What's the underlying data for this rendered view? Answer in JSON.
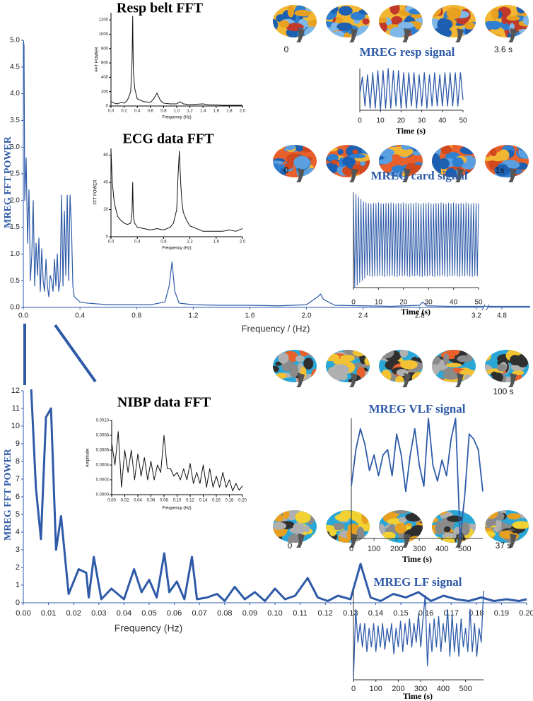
{
  "chart_data": [
    {
      "type": "line",
      "xlabel": "Frequency / (Hz)",
      "ylabel": "MREG FFT POWER",
      "color": "#2e5aa8",
      "xlim": [
        0,
        5.0
      ],
      "axis_break": [
        3.25,
        4.7
      ],
      "ylim": [
        0,
        5.0
      ],
      "xticks": [
        {
          "value": 0,
          "label": "0.0"
        },
        0.4,
        0.8,
        1.2,
        1.6,
        {
          "value": 2,
          "label": "2.0"
        },
        2.4,
        2.8,
        3.2,
        4.8
      ],
      "yticks": [
        {
          "value": 0,
          "label": "0.0"
        },
        0.5,
        {
          "value": 1,
          "label": "1.0"
        },
        1.5,
        {
          "value": 2,
          "label": "2.0"
        },
        2.5,
        {
          "value": 3,
          "label": "3.0"
        },
        3.5,
        {
          "value": 4,
          "label": "4.0"
        },
        4.5,
        {
          "value": 5,
          "label": "5.0"
        }
      ],
      "x": [
        0,
        0.005,
        0.01,
        0.02,
        0.03,
        0.04,
        0.05,
        0.06,
        0.07,
        0.08,
        0.09,
        0.1,
        0.11,
        0.12,
        0.13,
        0.14,
        0.15,
        0.16,
        0.17,
        0.18,
        0.19,
        0.2,
        0.21,
        0.22,
        0.23,
        0.24,
        0.25,
        0.26,
        0.27,
        0.28,
        0.29,
        0.3,
        0.31,
        0.32,
        0.33,
        0.34,
        0.35,
        0.36,
        0.38,
        0.4,
        0.45,
        0.5,
        0.55,
        0.6,
        0.7,
        0.8,
        0.9,
        1.0,
        1.03,
        1.05,
        1.07,
        1.1,
        1.2,
        1.4,
        1.6,
        1.8,
        2.0,
        2.08,
        2.1,
        2.12,
        2.2,
        2.4,
        2.6,
        2.8,
        2.82,
        2.85,
        3.0,
        3.2,
        4.7,
        4.8,
        5.0
      ],
      "values": [
        5.0,
        4.9,
        2.0,
        2.8,
        1.2,
        2.2,
        0.5,
        1.0,
        2.0,
        0.4,
        1.2,
        0.6,
        1.3,
        0.3,
        1.1,
        0.5,
        0.3,
        0.9,
        0.4,
        0.2,
        0.6,
        0.5,
        0.3,
        0.9,
        0.4,
        1.0,
        0.3,
        0.5,
        2.1,
        0.4,
        1.8,
        0.6,
        2.1,
        0.5,
        2.1,
        1.5,
        0.4,
        0.2,
        0.15,
        0.1,
        0.08,
        0.07,
        0.06,
        0.05,
        0.05,
        0.05,
        0.05,
        0.1,
        0.4,
        0.85,
        0.3,
        0.08,
        0.05,
        0.04,
        0.04,
        0.03,
        0.05,
        0.2,
        0.25,
        0.15,
        0.04,
        0.03,
        0.02,
        0.04,
        0.1,
        0.03,
        0.02,
        0.02,
        0.02,
        0.02,
        0.02
      ]
    },
    {
      "type": "line",
      "title": "Resp belt FFT",
      "xlabel": "Frequency (Hz)",
      "ylabel": "FFT POWER",
      "color": "#111111",
      "xlim": [
        0,
        2.0
      ],
      "ylim": [
        0,
        1300
      ],
      "xticks": [
        {
          "value": 0,
          "label": "0.0"
        },
        0.2,
        0.4,
        0.6,
        0.8,
        {
          "value": 1,
          "label": "1.0"
        },
        1.2,
        1.4,
        1.6,
        1.8,
        {
          "value": 2,
          "label": "2.0"
        }
      ],
      "yticks": [
        0,
        200,
        400,
        600,
        800,
        1000,
        1200
      ],
      "x": [
        0,
        0.05,
        0.1,
        0.15,
        0.2,
        0.25,
        0.3,
        0.32,
        0.33,
        0.34,
        0.36,
        0.4,
        0.5,
        0.6,
        0.65,
        0.7,
        0.75,
        0.8,
        0.9,
        1.0,
        1.05,
        1.1,
        1.2,
        1.3,
        1.4,
        1.5,
        1.6,
        1.7,
        1.8,
        1.9,
        2.0
      ],
      "values": [
        60,
        40,
        30,
        50,
        40,
        80,
        200,
        600,
        1250,
        500,
        250,
        100,
        60,
        50,
        100,
        180,
        80,
        40,
        30,
        30,
        60,
        30,
        20,
        25,
        30,
        15,
        15,
        10,
        10,
        10,
        10
      ]
    },
    {
      "type": "line",
      "title": "ECG data FFT",
      "xlabel": "Frequency (Hz)",
      "ylabel": "FFT POWER",
      "color": "#111111",
      "xlim": [
        0,
        2.0
      ],
      "ylim": [
        0,
        65
      ],
      "xticks": [
        {
          "value": 0,
          "label": "0.0"
        },
        0.4,
        0.8,
        1.2,
        1.6,
        {
          "value": 2,
          "label": "2.0"
        }
      ],
      "yticks": [
        0,
        20,
        40,
        60
      ],
      "x": [
        0,
        0.02,
        0.05,
        0.1,
        0.15,
        0.2,
        0.25,
        0.3,
        0.32,
        0.33,
        0.34,
        0.36,
        0.4,
        0.5,
        0.6,
        0.7,
        0.8,
        0.9,
        0.95,
        1.0,
        1.02,
        1.04,
        1.06,
        1.08,
        1.1,
        1.15,
        1.2,
        1.3,
        1.4,
        1.5,
        1.6,
        1.7,
        1.8,
        1.9,
        2.0
      ],
      "values": [
        64,
        40,
        25,
        15,
        12,
        10,
        9,
        10,
        18,
        40,
        15,
        10,
        7,
        6,
        5,
        6,
        5,
        7,
        10,
        20,
        45,
        63,
        40,
        25,
        18,
        12,
        8,
        6,
        4,
        4,
        4,
        4,
        5,
        4,
        6
      ]
    },
    {
      "type": "line",
      "title": "MREG resp signal",
      "xlabel": "Time (s)",
      "color": "#2e5aa8",
      "frame_labels": [
        "0",
        "3.6 s"
      ],
      "xlim": [
        0,
        50
      ],
      "xticks": [
        0,
        10,
        20,
        30,
        40,
        50
      ],
      "x": [
        0,
        1.25,
        2.5,
        3.75,
        5,
        6.25,
        7.5,
        8.75,
        10,
        11.25,
        12.5,
        13.75,
        15,
        16.25,
        17.5,
        18.75,
        20,
        21.25,
        22.5,
        23.75,
        25,
        26.25,
        27.5,
        28.75,
        30,
        31.25,
        32.5,
        33.75,
        35,
        36.25,
        37.5,
        38.75,
        40,
        41.25,
        42.5,
        43.75,
        45,
        46.25,
        47.5,
        48.75,
        50
      ],
      "values": [
        -0.2,
        0.6,
        -0.8,
        0.7,
        -0.9,
        0.8,
        -0.9,
        0.9,
        -1,
        0.9,
        -0.9,
        1,
        -0.9,
        0.9,
        -0.8,
        0.9,
        -0.9,
        0.8,
        -0.9,
        0.8,
        -0.8,
        0.8,
        -0.9,
        0.7,
        -0.8,
        0.8,
        -0.9,
        0.7,
        -0.8,
        0.8,
        -0.8,
        0.7,
        -0.8,
        0.8,
        -0.8,
        0.8,
        -0.8,
        0.8,
        -0.8,
        0.8,
        -0.5
      ]
    },
    {
      "type": "line",
      "title": "MREG card signal",
      "xlabel": "Time (s)",
      "color": "#2e5aa8",
      "frame_labels": [
        "0",
        "1s"
      ],
      "xlim": [
        0,
        50
      ],
      "xticks": [
        0,
        10,
        20,
        30,
        40,
        50
      ],
      "x": [
        0,
        0.5,
        1,
        1.5,
        2,
        2.5,
        3,
        3.5,
        4,
        4.5,
        5,
        5.5,
        6,
        6.5,
        7,
        7.5,
        8,
        8.5,
        9,
        9.5,
        10,
        10.5,
        11,
        11.5,
        12,
        12.5,
        13,
        13.5,
        14,
        14.5,
        15,
        15.5,
        16,
        16.5,
        17,
        17.5,
        18,
        18.5,
        19,
        19.5,
        20,
        20.5,
        21,
        21.5,
        22,
        22.5,
        23,
        23.5,
        24,
        24.5,
        25,
        25.5,
        26,
        26.5,
        27,
        27.5,
        28,
        28.5,
        29,
        29.5,
        30,
        30.5,
        31,
        31.5,
        32,
        32.5,
        33,
        33.5,
        34,
        34.5,
        35,
        35.5,
        36,
        36.5,
        37,
        37.5,
        38,
        38.5,
        39,
        39.5,
        40,
        40.5,
        41,
        41.5,
        42,
        42.5,
        43,
        43.5,
        44,
        44.5,
        45,
        45.5,
        46,
        46.5,
        47,
        47.5,
        48,
        48.5,
        49,
        49.5,
        50
      ],
      "values": [
        1,
        -1,
        0.95,
        -0.95,
        0.9,
        -0.9,
        0.85,
        -0.85,
        0.8,
        -0.8,
        0.78,
        -0.74,
        0.76,
        -0.76,
        0.75,
        -0.77,
        0.77,
        -0.75,
        0.76,
        -0.76,
        0.78,
        -0.74,
        0.76,
        -0.76,
        0.75,
        -0.77,
        0.77,
        -0.75,
        0.76,
        -0.76,
        0.78,
        -0.74,
        0.76,
        -0.76,
        0.75,
        -0.77,
        0.77,
        -0.75,
        0.76,
        -0.76,
        0.78,
        -0.74,
        0.76,
        -0.76,
        0.75,
        -0.77,
        0.77,
        -0.75,
        0.76,
        -0.76,
        0.78,
        -0.74,
        0.76,
        -0.76,
        0.75,
        -0.77,
        0.77,
        -0.75,
        0.76,
        -0.76,
        0.78,
        -0.74,
        0.76,
        -0.76,
        0.75,
        -0.77,
        0.77,
        -0.75,
        0.76,
        -0.76,
        0.78,
        -0.74,
        0.76,
        -0.76,
        0.75,
        -0.77,
        0.77,
        -0.75,
        0.76,
        -0.76,
        0.78,
        -0.74,
        0.76,
        -0.76,
        0.75,
        -0.77,
        0.77,
        -0.75,
        0.76,
        -0.76,
        0.78,
        -0.74,
        0.76,
        -0.76,
        0.75,
        -0.77,
        0.77,
        -0.75,
        0.76,
        -0.76,
        0.76
      ]
    },
    {
      "type": "line",
      "title": "NIBP data FFT",
      "xlabel": "Frequency (Hz)",
      "ylabel": "Amplitude",
      "color": "#111111",
      "xlim": [
        0,
        0.2
      ],
      "ylim": [
        0,
        0.001
      ],
      "xticks": [
        {
          "value": 0,
          "label": "0.00"
        },
        0.02,
        0.04,
        0.06,
        0.08,
        {
          "value": 0.1,
          "label": "0.10"
        },
        0.12,
        0.14,
        0.16,
        0.18,
        {
          "value": 0.2,
          "label": "0.20"
        }
      ],
      "yticks": [
        {
          "value": 0,
          "label": "0.0000"
        },
        0.0002,
        0.0004,
        0.0006,
        0.0008,
        {
          "value": 0.001,
          "label": "0.0010"
        }
      ],
      "x": [
        0,
        0.005,
        0.01,
        0.015,
        0.02,
        0.025,
        0.03,
        0.035,
        0.04,
        0.045,
        0.05,
        0.055,
        0.06,
        0.065,
        0.07,
        0.075,
        0.08,
        0.085,
        0.09,
        0.095,
        0.1,
        0.105,
        0.11,
        0.115,
        0.12,
        0.125,
        0.13,
        0.135,
        0.14,
        0.145,
        0.15,
        0.155,
        0.16,
        0.165,
        0.17,
        0.175,
        0.18,
        0.185,
        0.19,
        0.195,
        0.2
      ],
      "values": [
        0.0007,
        0.0004,
        0.00085,
        0.0001,
        0.0006,
        0.0003,
        0.0006,
        0.0002,
        0.00055,
        0.00025,
        0.0005,
        0.0002,
        0.00045,
        0.0002,
        0.0004,
        0.0003,
        0.0008,
        0.00035,
        0.00035,
        0.00025,
        0.0003,
        0.0002,
        0.00035,
        0.0002,
        0.00042,
        0.00015,
        0.0003,
        0.00015,
        0.0004,
        0.0001,
        0.00035,
        0.0001,
        0.00025,
        0.0001,
        0.0003,
        0.0001,
        0.0002,
        5e-05,
        0.00015,
        6e-05,
        0.00012
      ]
    },
    {
      "type": "line",
      "xlabel": "Frequency (Hz)",
      "ylabel": "MREG FFT POWER",
      "color": "#2e5aa8",
      "xlim": [
        0,
        0.2
      ],
      "ylim": [
        0,
        12
      ],
      "xticks": [
        {
          "value": 0,
          "label": "0.00"
        },
        0.01,
        0.02,
        0.03,
        0.04,
        0.05,
        0.06,
        0.07,
        0.08,
        0.09,
        {
          "value": 0.1,
          "label": "0.10"
        },
        0.11,
        0.12,
        0.13,
        0.14,
        0.15,
        0.16,
        0.17,
        0.18,
        0.19,
        {
          "value": 0.2,
          "label": "0.20"
        }
      ],
      "yticks": [
        0,
        1,
        2,
        3,
        4,
        5,
        6,
        7,
        8,
        9,
        10,
        11,
        12
      ],
      "x": [
        0.003,
        0.005,
        0.007,
        0.009,
        0.011,
        0.013,
        0.015,
        0.018,
        0.022,
        0.025,
        0.026,
        0.028,
        0.031,
        0.035,
        0.04,
        0.044,
        0.047,
        0.05,
        0.053,
        0.056,
        0.058,
        0.061,
        0.064,
        0.067,
        0.069,
        0.073,
        0.077,
        0.08,
        0.084,
        0.088,
        0.092,
        0.096,
        0.1,
        0.104,
        0.108,
        0.113,
        0.117,
        0.121,
        0.125,
        0.13,
        0.134,
        0.138,
        0.142,
        0.147,
        0.152,
        0.157,
        0.162,
        0.167,
        0.172,
        0.177,
        0.182,
        0.187,
        0.192,
        0.197,
        0.2
      ],
      "values": [
        12.5,
        6.5,
        3.6,
        10.5,
        11,
        3,
        4.9,
        0.5,
        1.9,
        1.7,
        0.3,
        2.6,
        0.2,
        0.8,
        0.2,
        1.9,
        0.6,
        1.3,
        0.3,
        2.8,
        0.6,
        1.2,
        0.2,
        2.6,
        0.2,
        0.3,
        0.5,
        0.1,
        0.9,
        0.2,
        0.6,
        0.1,
        0.8,
        0.2,
        0.4,
        1.4,
        0.3,
        0.1,
        0.4,
        0.2,
        2.2,
        0.3,
        0.1,
        0.5,
        0.3,
        0.6,
        0.1,
        0.4,
        0.2,
        0.1,
        0.3,
        0.1,
        0.2,
        0.1,
        0.2
      ]
    },
    {
      "type": "line",
      "title": "MREG VLF signal",
      "xlabel": "Time (s)",
      "color": "#2e5aa8",
      "frame_labels": [
        "100 s"
      ],
      "xlim": [
        0,
        580
      ],
      "xticks": [
        0,
        100,
        200,
        300,
        400,
        500
      ],
      "x": [
        0,
        20,
        40,
        60,
        80,
        100,
        120,
        140,
        160,
        180,
        200,
        220,
        240,
        260,
        280,
        300,
        320,
        340,
        360,
        380,
        400,
        420,
        440,
        460,
        480,
        500,
        520,
        540,
        560,
        580
      ],
      "values": [
        0.2,
        0.55,
        0.75,
        0.6,
        0.35,
        0.5,
        0.3,
        0.5,
        0.55,
        0.3,
        0.7,
        0.5,
        0.15,
        0.5,
        0.75,
        0.4,
        0.2,
        0.85,
        0.4,
        0.25,
        0.45,
        0.3,
        0.65,
        0.85,
        -0.3,
        0.1,
        0.7,
        0.65,
        0.55,
        0.15
      ]
    },
    {
      "type": "line",
      "title": "MREG LF signal",
      "xlabel": "Time (s)",
      "color": "#2e5aa8",
      "frame_labels": [
        "0",
        "37 s"
      ],
      "xlim": [
        0,
        580
      ],
      "xticks": [
        0,
        100,
        200,
        300,
        400,
        500
      ],
      "x": [
        0,
        10,
        20,
        30,
        40,
        50,
        60,
        70,
        80,
        90,
        100,
        110,
        120,
        130,
        140,
        150,
        160,
        170,
        180,
        190,
        200,
        210,
        220,
        230,
        240,
        250,
        260,
        270,
        280,
        290,
        300,
        310,
        320,
        330,
        340,
        350,
        360,
        370,
        380,
        390,
        400,
        410,
        420,
        430,
        440,
        450,
        460,
        470,
        480,
        490,
        500,
        510,
        520,
        530,
        540,
        550,
        560,
        570,
        580
      ],
      "values": [
        -0.9,
        0.6,
        -0.1,
        0.3,
        -0.2,
        0.3,
        -0.3,
        0.2,
        -0.2,
        0.3,
        -0.3,
        0.25,
        -0.2,
        0.3,
        -0.25,
        0.2,
        -0.1,
        0.3,
        -0.35,
        0.2,
        -0.2,
        0.35,
        -0.3,
        0.3,
        -0.15,
        0.4,
        -0.2,
        0.3,
        -0.1,
        0.5,
        -0.2,
        0.4,
        0.9,
        -0.6,
        0.3,
        -0.3,
        0.4,
        -0.2,
        0.45,
        -0.3,
        0.3,
        -0.1,
        0.6,
        -0.4,
        0.5,
        -0.3,
        0.3,
        -0.4,
        0.4,
        -0.2,
        0.2,
        -0.3,
        0.6,
        -0.3,
        0.3,
        -0.4,
        0.2,
        -0.1,
        1.0
      ]
    }
  ]
}
